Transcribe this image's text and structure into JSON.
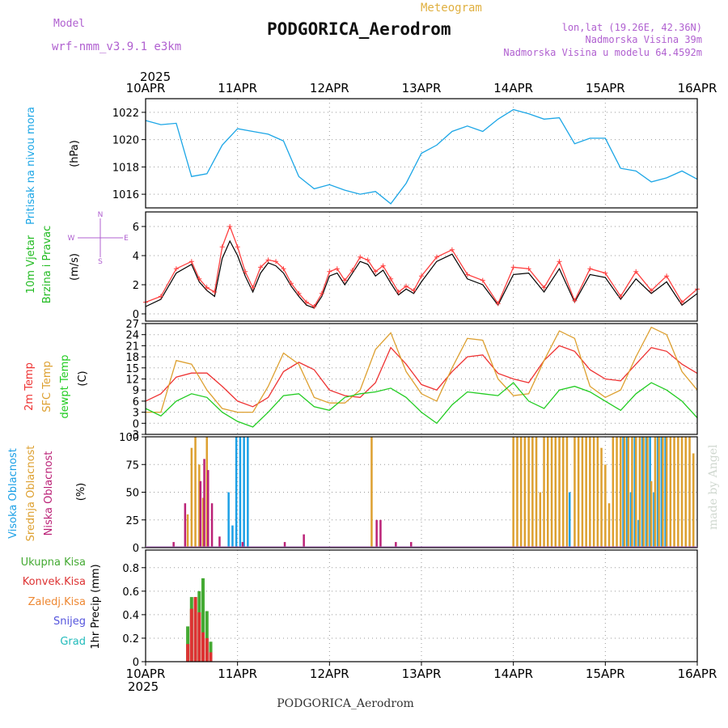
{
  "header": {
    "model_label": "Model",
    "model_name": "wrf-nmm_v3.9.1  e3km",
    "chart_kind": "Meteogram",
    "station": "PODGORICA_Aerodrom",
    "coords": "lon,lat (19.26E, 42.36N)",
    "elevation": "Nadmorska Visina 39m",
    "model_elevation": "Nadmorska Visina u modelu 64.4592m",
    "year": "2025",
    "footer": "PODGORICA_Aerodrom",
    "credit": "made by Angel"
  },
  "colors": {
    "pressure": "#1ca6e6",
    "wind_text": "#22bb22",
    "wind_gust": "#ff4040",
    "wind_mean": "#000000",
    "t2m": "#ee3333",
    "tsfc": "#dda030",
    "dewpt": "#22cc22",
    "cloud_high": "#1ca0e6",
    "cloud_mid": "#dda030",
    "cloud_low": "#bb2277",
    "precip_total": "#44aa33",
    "precip_conv": "#dd3333",
    "precip_frz": "#ee8833",
    "snow": "#5555dd",
    "grad": "#22bbbb",
    "model_purple": "#b060d0",
    "meteogram_gold": "#e0b040"
  },
  "x_axis": {
    "ticks": [
      "10APR",
      "11APR",
      "12APR",
      "13APR",
      "14APR",
      "15APR",
      "16APR"
    ],
    "hours_per_day": 24
  },
  "chart_data": [
    {
      "type": "line",
      "id": "pressure",
      "title": "Pritisak na nivou mora",
      "ylabel": "(hPa)",
      "ylim": [
        1015,
        1023
      ],
      "yticks": [
        1016,
        1018,
        1020,
        1022
      ],
      "series": [
        {
          "name": "Pritisak na nivou mora",
          "color_key": "pressure",
          "x": [
            0,
            4,
            8,
            12,
            16,
            20,
            24,
            28,
            32,
            36,
            40,
            44,
            48,
            52,
            56,
            60,
            64,
            68,
            72,
            76,
            80,
            84,
            88,
            92,
            96,
            100,
            104,
            108,
            112,
            116,
            120,
            124,
            128,
            132,
            136,
            140,
            144
          ],
          "values": [
            1021.4,
            1021.1,
            1021.2,
            1017.3,
            1017.5,
            1019.6,
            1020.8,
            1020.6,
            1020.4,
            1019.9,
            1017.3,
            1016.4,
            1016.7,
            1016.3,
            1016.0,
            1016.2,
            1015.3,
            1016.8,
            1019.0,
            1019.6,
            1020.6,
            1021.0,
            1020.6,
            1021.5,
            1022.2,
            1021.9,
            1021.5,
            1021.6,
            1019.7,
            1020.1,
            1020.1,
            1017.9,
            1017.7,
            1016.9,
            1017.2,
            1017.7,
            1017.1
          ]
        }
      ]
    },
    {
      "type": "line",
      "id": "wind",
      "title_lines": [
        "10m Vjetar",
        "Brzina i Pravac"
      ],
      "ylabel": "(m/s)",
      "compass": {
        "n": "N",
        "e": "E",
        "s": "S",
        "w": "W"
      },
      "ylim": [
        -0.5,
        7
      ],
      "yticks": [
        0,
        2,
        4,
        6
      ],
      "series": [
        {
          "name": "Mean wind",
          "color_key": "wind_mean",
          "x": [
            0,
            4,
            8,
            12,
            14,
            16,
            18,
            20,
            22,
            24,
            26,
            28,
            30,
            32,
            34,
            36,
            38,
            40,
            42,
            44,
            46,
            48,
            50,
            52,
            54,
            56,
            58,
            60,
            62,
            64,
            66,
            68,
            70,
            72,
            76,
            80,
            84,
            88,
            92,
            96,
            100,
            104,
            108,
            112,
            116,
            120,
            124,
            128,
            132,
            136,
            140,
            144
          ],
          "values": [
            0.5,
            1.0,
            2.8,
            3.4,
            2.2,
            1.6,
            1.2,
            3.8,
            5.0,
            4.0,
            2.6,
            1.5,
            2.8,
            3.5,
            3.3,
            2.8,
            1.9,
            1.2,
            0.6,
            0.4,
            1.2,
            2.6,
            2.8,
            2.0,
            2.8,
            3.6,
            3.4,
            2.6,
            3.0,
            2.1,
            1.3,
            1.7,
            1.4,
            2.2,
            3.6,
            4.1,
            2.4,
            2.0,
            0.6,
            2.7,
            2.8,
            1.5,
            3.1,
            0.8,
            2.7,
            2.5,
            1.0,
            2.4,
            1.4,
            2.2,
            0.6,
            1.4
          ]
        },
        {
          "name": "Gusts",
          "color_key": "wind_gust",
          "x": [
            0,
            4,
            8,
            12,
            14,
            16,
            18,
            20,
            22,
            24,
            26,
            28,
            30,
            32,
            34,
            36,
            38,
            40,
            42,
            44,
            46,
            48,
            50,
            52,
            54,
            56,
            58,
            60,
            62,
            64,
            66,
            68,
            70,
            72,
            76,
            80,
            84,
            88,
            92,
            96,
            100,
            104,
            108,
            112,
            116,
            120,
            124,
            128,
            132,
            136,
            140,
            144
          ],
          "values": [
            0.8,
            1.2,
            3.1,
            3.6,
            2.4,
            1.8,
            1.5,
            4.6,
            6.0,
            4.6,
            2.9,
            1.8,
            3.2,
            3.7,
            3.6,
            3.1,
            2.1,
            1.4,
            0.8,
            0.5,
            1.4,
            2.9,
            3.1,
            2.3,
            3.0,
            3.9,
            3.7,
            2.9,
            3.3,
            2.4,
            1.5,
            1.9,
            1.6,
            2.6,
            3.9,
            4.4,
            2.7,
            2.3,
            0.7,
            3.2,
            3.1,
            1.8,
            3.6,
            0.9,
            3.1,
            2.8,
            1.2,
            2.9,
            1.6,
            2.6,
            0.8,
            1.7
          ]
        }
      ]
    },
    {
      "type": "line",
      "id": "temperature",
      "title_lines": [
        "2m Temp",
        "SFC Temp",
        "dewpt Temp"
      ],
      "ylabel": "(C)",
      "ylim": [
        -3,
        27
      ],
      "yticks": [
        -3,
        0,
        3,
        6,
        9,
        12,
        15,
        18,
        21,
        24,
        27
      ],
      "series": [
        {
          "name": "2m Temp",
          "color_key": "t2m",
          "x": [
            0,
            4,
            8,
            12,
            16,
            20,
            24,
            28,
            32,
            36,
            40,
            44,
            48,
            52,
            56,
            60,
            64,
            68,
            72,
            76,
            80,
            84,
            88,
            92,
            96,
            100,
            104,
            108,
            112,
            116,
            120,
            124,
            128,
            132,
            136,
            140,
            144
          ],
          "values": [
            6.0,
            8.0,
            12.5,
            13.6,
            13.6,
            10.0,
            6.0,
            4.5,
            7.0,
            14.0,
            16.5,
            14.5,
            9.0,
            7.5,
            7.0,
            11.0,
            20.5,
            16.0,
            10.5,
            9.0,
            14.0,
            18.0,
            18.5,
            13.5,
            12.0,
            11.0,
            17.0,
            21.0,
            19.5,
            14.5,
            12.0,
            11.5,
            16.0,
            20.5,
            19.5,
            16.0,
            13.5
          ]
        },
        {
          "name": "SFC Temp",
          "color_key": "tsfc",
          "x": [
            0,
            4,
            8,
            12,
            16,
            20,
            24,
            28,
            32,
            36,
            40,
            44,
            48,
            52,
            56,
            60,
            64,
            68,
            72,
            76,
            80,
            84,
            88,
            92,
            96,
            100,
            104,
            108,
            112,
            116,
            120,
            124,
            128,
            132,
            136,
            140,
            144
          ],
          "values": [
            3.0,
            3.0,
            17.0,
            16.0,
            9.0,
            4.0,
            3.0,
            3.0,
            10.0,
            19.0,
            16.0,
            7.0,
            5.5,
            5.5,
            9.0,
            20.0,
            24.5,
            14.0,
            8.0,
            6.0,
            15.0,
            23.0,
            22.5,
            12.0,
            7.5,
            8.0,
            17.0,
            25.0,
            23.0,
            10.0,
            7.0,
            9.0,
            18.0,
            26.0,
            24.0,
            14.0,
            9.0
          ]
        },
        {
          "name": "dewpt Temp",
          "color_key": "dewpt",
          "x": [
            0,
            4,
            8,
            12,
            16,
            20,
            24,
            28,
            32,
            36,
            40,
            44,
            48,
            52,
            56,
            60,
            64,
            68,
            72,
            76,
            80,
            84,
            88,
            92,
            96,
            100,
            104,
            108,
            112,
            116,
            120,
            124,
            128,
            132,
            136,
            140,
            144
          ],
          "values": [
            4.0,
            2.0,
            6.0,
            8.0,
            7.0,
            3.0,
            0.5,
            -1.0,
            3.0,
            7.5,
            8.0,
            4.5,
            3.5,
            7.0,
            8.0,
            8.5,
            9.5,
            7.0,
            3.0,
            0.0,
            5.0,
            8.5,
            8.0,
            7.5,
            11.0,
            6.0,
            4.0,
            9.0,
            10.0,
            8.5,
            6.0,
            3.5,
            8.0,
            11.0,
            9.0,
            6.0,
            1.5
          ]
        }
      ]
    },
    {
      "type": "bar",
      "id": "clouds",
      "title_lines": [
        "Visoka Oblacnost",
        "Srednja Oblacnost",
        "Niska Oblacnost"
      ],
      "ylabel": "(%)",
      "ylim": [
        0,
        100
      ],
      "yticks": [
        0,
        25,
        50,
        75,
        100
      ],
      "series": [
        {
          "name": "Visoka Oblacnost",
          "color_key": "cloud_high",
          "x": [
            22,
            23,
            24,
            25,
            26,
            27,
            111,
            125,
            126,
            127,
            128,
            129,
            130,
            131,
            132,
            133,
            134,
            135,
            136
          ],
          "values": [
            50,
            20,
            100,
            100,
            100,
            100,
            50,
            100,
            100,
            50,
            100,
            25,
            100,
            100,
            100,
            50,
            100,
            100,
            100
          ]
        },
        {
          "name": "Srednja Oblacnost",
          "color_key": "cloud_mid",
          "x": [
            11,
            12,
            13,
            14,
            15,
            16,
            59,
            96,
            97,
            98,
            99,
            100,
            101,
            102,
            103,
            104,
            105,
            106,
            107,
            108,
            109,
            110,
            112,
            113,
            114,
            115,
            116,
            117,
            118,
            119,
            120,
            121,
            122,
            123,
            124,
            125,
            126,
            127,
            128,
            129,
            130,
            131,
            132,
            133,
            134,
            135,
            136,
            137,
            138,
            139,
            140,
            141,
            142,
            143
          ],
          "values": [
            30,
            90,
            100,
            75,
            45,
            100,
            100,
            100,
            100,
            100,
            100,
            100,
            100,
            100,
            50,
            100,
            100,
            100,
            100,
            100,
            100,
            100,
            100,
            100,
            100,
            100,
            100,
            100,
            100,
            90,
            75,
            40,
            100,
            100,
            100,
            100,
            100,
            100,
            100,
            100,
            100,
            100,
            60,
            100,
            100,
            100,
            100,
            100,
            100,
            100,
            100,
            100,
            100,
            85
          ]
        },
        {
          "name": "Niska Oblacnost",
          "color_key": "cloud_low",
          "x": [
            7,
            10,
            14,
            15,
            16,
            17,
            19,
            25,
            36,
            41,
            60,
            61,
            65,
            69
          ],
          "values": [
            5,
            40,
            60,
            80,
            70,
            40,
            10,
            5,
            5,
            12,
            25,
            25,
            5,
            5
          ]
        }
      ]
    },
    {
      "type": "bar",
      "id": "precip",
      "title_lines": [
        "Ukupna Kisa",
        "Konvek.Kisa",
        "Zaledj.Kisa",
        "Snijeg",
        "Grad"
      ],
      "ylabel": "1hr Precip (mm)",
      "ylim": [
        0,
        0.95
      ],
      "yticks": [
        0,
        0.2,
        0.4,
        0.6,
        0.8
      ],
      "series": [
        {
          "name": "Ukupna Kisa",
          "color_key": "precip_total",
          "x": [
            11,
            12,
            13,
            14,
            15,
            16,
            17,
            18
          ],
          "values": [
            0.3,
            0.55,
            0.55,
            0.6,
            0.71,
            0.43,
            0.17,
            0.0
          ]
        },
        {
          "name": "Konvek.Kisa",
          "color_key": "precip_conv",
          "x": [
            11,
            12,
            13,
            14,
            15,
            16,
            17
          ],
          "values": [
            0.15,
            0.45,
            0.55,
            0.42,
            0.25,
            0.2,
            0.08
          ]
        }
      ]
    }
  ]
}
